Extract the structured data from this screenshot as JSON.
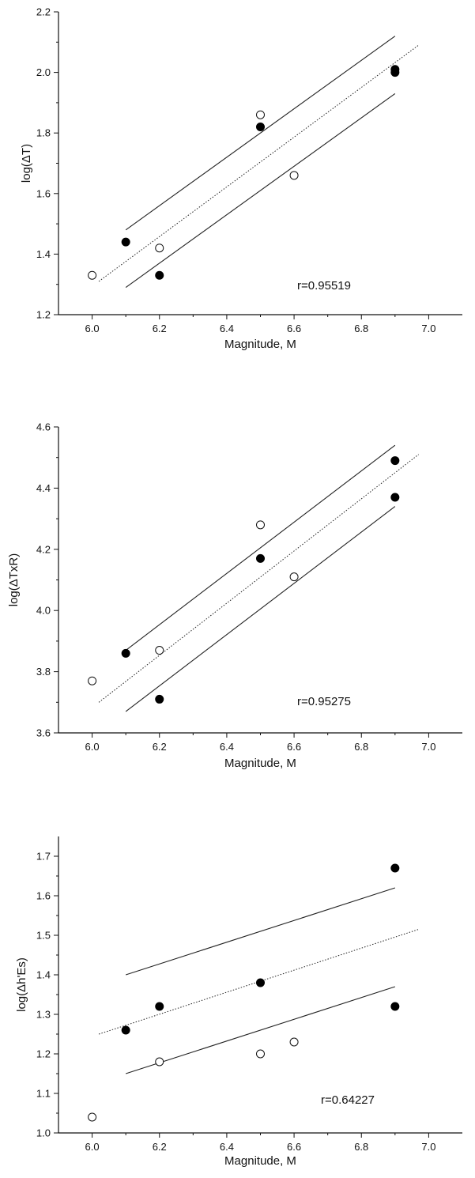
{
  "chart_data": [
    {
      "type": "scatter",
      "xlabel": "Magnitude, M",
      "ylabel": "log(ΔT)",
      "annotation": "r=0.95519",
      "xlim": [
        5.9,
        7.1
      ],
      "ylim": [
        1.2,
        2.2
      ],
      "xticks": [
        "6.0",
        "6.2",
        "6.4",
        "6.6",
        "6.8",
        "7.0"
      ],
      "yticks": [
        "1.2",
        "1.4",
        "1.6",
        "1.8",
        "2.0",
        "2.2"
      ],
      "filled_points": [
        [
          6.1,
          1.44
        ],
        [
          6.2,
          1.33
        ],
        [
          6.5,
          1.82
        ],
        [
          6.9,
          2.01
        ],
        [
          6.9,
          2.0
        ]
      ],
      "open_points": [
        [
          6.0,
          1.33
        ],
        [
          6.2,
          1.42
        ],
        [
          6.5,
          1.86
        ],
        [
          6.6,
          1.66
        ]
      ],
      "fit_line": [
        [
          6.02,
          1.31
        ],
        [
          6.97,
          2.09
        ]
      ],
      "upper_bound": [
        [
          6.1,
          1.48
        ],
        [
          6.9,
          2.12
        ]
      ],
      "lower_bound": [
        [
          6.1,
          1.29
        ],
        [
          6.9,
          1.93
        ]
      ]
    },
    {
      "type": "scatter",
      "xlabel": "Magnitude, M",
      "ylabel": "log(ΔTxR)",
      "annotation": "r=0.95275",
      "xlim": [
        5.9,
        7.1
      ],
      "ylim": [
        3.6,
        4.6
      ],
      "xticks": [
        "6.0",
        "6.2",
        "6.4",
        "6.6",
        "6.8",
        "7.0"
      ],
      "yticks": [
        "3.6",
        "3.8",
        "4.0",
        "4.2",
        "4.4",
        "4.6"
      ],
      "filled_points": [
        [
          6.1,
          3.86
        ],
        [
          6.2,
          3.71
        ],
        [
          6.5,
          4.17
        ],
        [
          6.9,
          4.49
        ],
        [
          6.9,
          4.37
        ]
      ],
      "open_points": [
        [
          6.0,
          3.77
        ],
        [
          6.2,
          3.87
        ],
        [
          6.5,
          4.28
        ],
        [
          6.6,
          4.11
        ]
      ],
      "fit_line": [
        [
          6.02,
          3.7
        ],
        [
          6.97,
          4.51
        ]
      ],
      "upper_bound": [
        [
          6.1,
          3.87
        ],
        [
          6.9,
          4.54
        ]
      ],
      "lower_bound": [
        [
          6.1,
          3.67
        ],
        [
          6.9,
          4.34
        ]
      ]
    },
    {
      "type": "scatter",
      "xlabel": "Magnitude, M",
      "ylabel": "log(Δh'Es)",
      "annotation": "r=0.64227",
      "xlim": [
        5.9,
        7.1
      ],
      "ylim": [
        1.0,
        1.75
      ],
      "xticks": [
        "6.0",
        "6.2",
        "6.4",
        "6.6",
        "6.8",
        "7.0"
      ],
      "yticks": [
        "1.0",
        "1.1",
        "1.2",
        "1.3",
        "1.4",
        "1.5",
        "1.6",
        "1.7"
      ],
      "filled_points": [
        [
          6.1,
          1.26
        ],
        [
          6.2,
          1.32
        ],
        [
          6.5,
          1.38
        ],
        [
          6.9,
          1.67
        ],
        [
          6.9,
          1.32
        ]
      ],
      "open_points": [
        [
          6.0,
          1.04
        ],
        [
          6.2,
          1.18
        ],
        [
          6.5,
          1.2
        ],
        [
          6.6,
          1.23
        ]
      ],
      "fit_line": [
        [
          6.02,
          1.25
        ],
        [
          6.97,
          1.515
        ]
      ],
      "upper_bound": [
        [
          6.1,
          1.4
        ],
        [
          6.9,
          1.62
        ]
      ],
      "lower_bound": [
        [
          6.1,
          1.15
        ],
        [
          6.9,
          1.37
        ]
      ]
    }
  ]
}
